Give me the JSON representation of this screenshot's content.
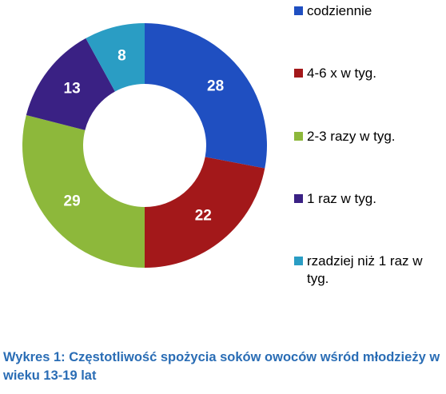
{
  "chart_data": {
    "type": "donut",
    "caption": "Wykres 1: Częstotliwość spożycia soków owoców wśród młodzieży w wieku 13-19 lat",
    "categories": [
      "codziennie",
      "4-6 x w tyg.",
      "2-3 razy w tyg.",
      "1 raz w tyg.",
      "rzadziej niż 1 raz w tyg."
    ],
    "values": [
      28,
      22,
      29,
      13,
      8
    ],
    "colors": [
      "#1f4fc1",
      "#a3181a",
      "#8db83b",
      "#3a2184",
      "#2a9dc4"
    ]
  }
}
